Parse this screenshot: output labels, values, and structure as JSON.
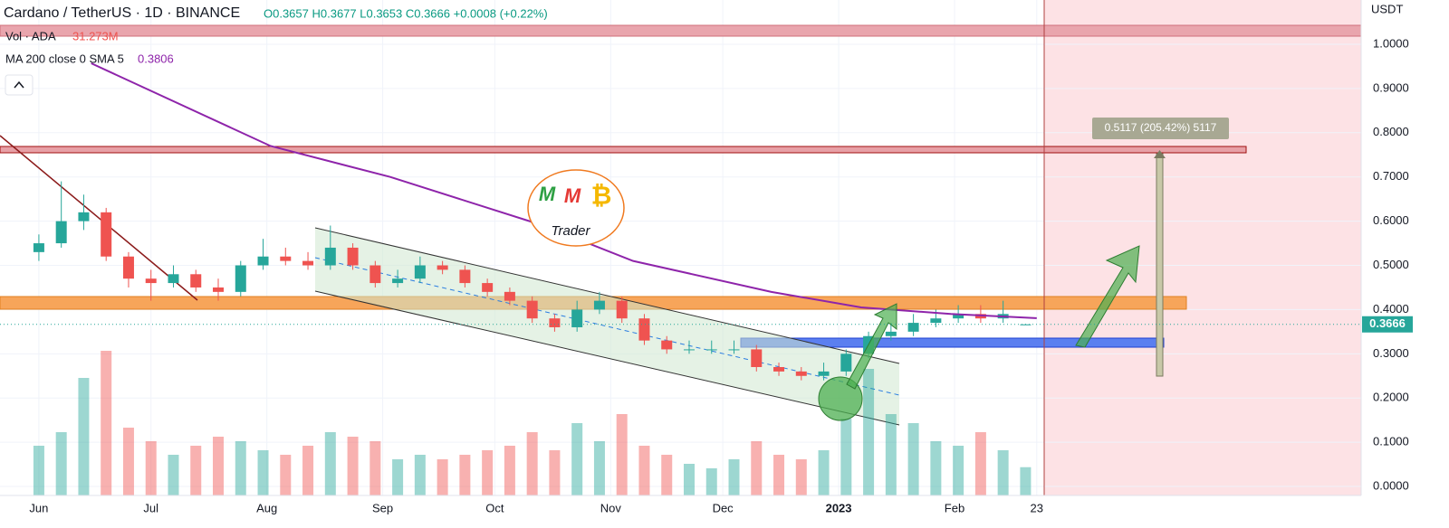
{
  "chart_data": {
    "type": "candlestick",
    "title": "Cardano / TetherUS · 1D · BINANCE",
    "ohlc_text": "O0.3657 H0.3677 L0.3653 C0.3666 +0.0008 (+0.22%)",
    "volume_name": "Vol · ADA",
    "volume_last_label": "31.273M",
    "axis_unit": "USDT",
    "x": [
      0,
      6,
      12,
      18,
      24,
      30,
      36,
      42,
      48,
      54,
      60,
      66,
      72,
      78,
      84,
      90,
      96,
      102,
      108,
      114,
      120,
      126,
      132,
      138,
      144,
      150,
      156,
      162,
      168,
      174,
      180,
      186,
      192,
      198,
      204,
      210,
      216,
      222,
      228,
      234,
      240,
      246,
      252,
      258,
      264
    ],
    "open": [
      0.53,
      0.55,
      0.6,
      0.62,
      0.52,
      0.47,
      0.46,
      0.48,
      0.45,
      0.44,
      0.5,
      0.52,
      0.51,
      0.5,
      0.54,
      0.5,
      0.46,
      0.47,
      0.5,
      0.49,
      0.46,
      0.44,
      0.42,
      0.38,
      0.36,
      0.4,
      0.42,
      0.38,
      0.33,
      0.31,
      0.31,
      0.31,
      0.31,
      0.27,
      0.26,
      0.25,
      0.26,
      0.3,
      0.34,
      0.35,
      0.37,
      0.38,
      0.39,
      0.38,
      0.3657
    ],
    "high": [
      0.57,
      0.69,
      0.66,
      0.63,
      0.53,
      0.49,
      0.5,
      0.49,
      0.47,
      0.51,
      0.56,
      0.54,
      0.53,
      0.59,
      0.55,
      0.51,
      0.49,
      0.52,
      0.51,
      0.5,
      0.47,
      0.45,
      0.43,
      0.39,
      0.42,
      0.44,
      0.43,
      0.39,
      0.34,
      0.33,
      0.33,
      0.33,
      0.32,
      0.28,
      0.27,
      0.28,
      0.31,
      0.35,
      0.37,
      0.39,
      0.4,
      0.41,
      0.41,
      0.42,
      0.3677
    ],
    "low": [
      0.51,
      0.54,
      0.58,
      0.51,
      0.45,
      0.42,
      0.45,
      0.44,
      0.42,
      0.43,
      0.49,
      0.5,
      0.49,
      0.49,
      0.49,
      0.45,
      0.45,
      0.46,
      0.48,
      0.45,
      0.43,
      0.41,
      0.37,
      0.35,
      0.35,
      0.39,
      0.37,
      0.32,
      0.3,
      0.3,
      0.3,
      0.3,
      0.26,
      0.25,
      0.24,
      0.24,
      0.25,
      0.29,
      0.33,
      0.34,
      0.36,
      0.37,
      0.37,
      0.37,
      0.3653
    ],
    "close": [
      0.55,
      0.6,
      0.62,
      0.52,
      0.47,
      0.46,
      0.48,
      0.45,
      0.44,
      0.5,
      0.52,
      0.51,
      0.5,
      0.54,
      0.5,
      0.46,
      0.47,
      0.5,
      0.49,
      0.46,
      0.44,
      0.42,
      0.38,
      0.36,
      0.4,
      0.42,
      0.38,
      0.33,
      0.31,
      0.31,
      0.31,
      0.31,
      0.27,
      0.26,
      0.25,
      0.26,
      0.3,
      0.34,
      0.35,
      0.37,
      0.38,
      0.39,
      0.38,
      0.39,
      0.3666
    ],
    "volume": [
      55,
      70,
      130,
      160,
      75,
      60,
      45,
      55,
      65,
      60,
      50,
      45,
      55,
      70,
      65,
      60,
      40,
      45,
      40,
      45,
      50,
      55,
      70,
      50,
      80,
      60,
      90,
      55,
      45,
      35,
      30,
      40,
      60,
      45,
      40,
      50,
      85,
      140,
      90,
      80,
      60,
      55,
      70,
      50,
      31.273
    ],
    "up_color": "#26a69a",
    "down_color": "#ef5350",
    "ma": {
      "name": "MA 200 close 0 SMA 5",
      "value_label": "0.3806",
      "color": "#8e24aa",
      "x": [
        14,
        23.5,
        62,
        94,
        135,
        159,
        196,
        220,
        244,
        267
      ],
      "values": [
        0.957,
        0.92,
        0.77,
        0.7,
        0.59,
        0.51,
        0.44,
        0.405,
        0.39,
        0.3806
      ]
    },
    "measure_label": "0.5117 (205.42%) 5117",
    "logo": {
      "m1": "M",
      "m2": "M",
      "coin": "₿",
      "word": "Trader"
    },
    "xlim": [
      -10.4,
      353.8
    ],
    "xticks": [
      {
        "value": 0,
        "label": "Jun"
      },
      {
        "value": 30,
        "label": "Jul"
      },
      {
        "value": 61,
        "label": "Aug"
      },
      {
        "value": 92,
        "label": "Sep"
      },
      {
        "value": 122,
        "label": "Oct"
      },
      {
        "value": 153,
        "label": "Nov"
      },
      {
        "value": 183,
        "label": "Dec"
      },
      {
        "value": 214,
        "label": "2023"
      },
      {
        "value": 245,
        "label": "Feb"
      },
      {
        "value": 267,
        "label": "23"
      }
    ],
    "ylim": [
      -0.0204,
      1.1002
    ],
    "yticks": [
      {
        "value": 0,
        "label": "0.0000"
      },
      {
        "value": 0.1,
        "label": "0.1000"
      },
      {
        "value": 0.2,
        "label": "0.2000"
      },
      {
        "value": 0.3,
        "label": "0.3000"
      },
      {
        "value": 0.4,
        "label": "0.4000"
      },
      {
        "value": 0.5,
        "label": "0.5000"
      },
      {
        "value": 0.6,
        "label": "0.6000"
      },
      {
        "value": 0.7,
        "label": "0.7000"
      },
      {
        "value": 0.8,
        "label": "0.8000"
      },
      {
        "value": 0.9,
        "label": "0.9000"
      },
      {
        "value": 1,
        "label": "1.0000"
      }
    ],
    "grid": true
  }
}
